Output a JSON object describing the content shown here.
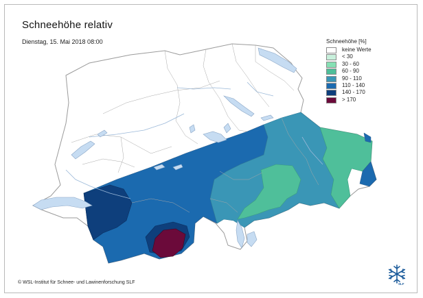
{
  "title": "Schneehöhe relativ",
  "date": "Dienstag, 15. Mai 2018 08:00",
  "legend": {
    "title": "Schneehöhe [%]",
    "items": [
      {
        "label": "keine Werte",
        "color": "#ffffff"
      },
      {
        "label": "< 30",
        "color": "#c8f0dc"
      },
      {
        "label": "30 - 60",
        "color": "#86e0b4"
      },
      {
        "label": "60 - 90",
        "color": "#4fbf9a"
      },
      {
        "label": "90 - 110",
        "color": "#3a96b6"
      },
      {
        "label": "110 - 140",
        "color": "#1b6aaf"
      },
      {
        "label": "140 - 170",
        "color": "#0e3f7c"
      },
      {
        "label": "> 170",
        "color": "#6b0a3a"
      }
    ]
  },
  "lake_color": "#c6dcf2",
  "copyright": "© WSL-Institut für Schnee- und Lawinenforschung SLF",
  "logo": {
    "label": "SLF",
    "icon": "snowflake-icon"
  }
}
